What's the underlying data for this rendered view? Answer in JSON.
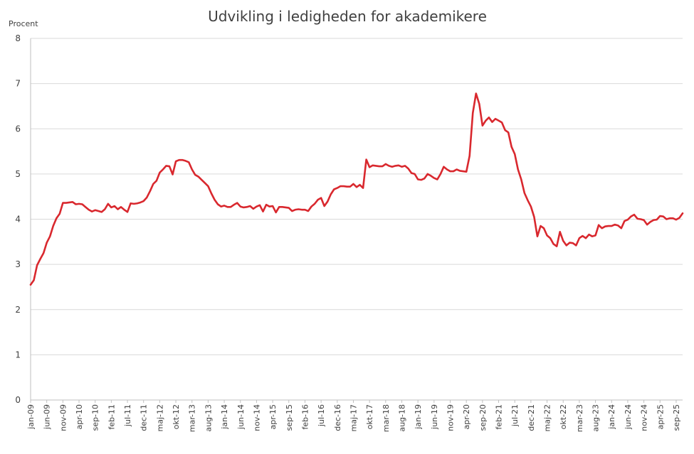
{
  "chart_data": {
    "type": "line",
    "title": "Udvikling i ledigheden for akademikere",
    "ylabel": "Procent",
    "xlabel": "",
    "ylim": [
      0,
      8
    ],
    "yticks": [
      "0",
      "1",
      "2",
      "3",
      "4",
      "5",
      "6",
      "7",
      "8"
    ],
    "grid": "horizontal",
    "legend": "none",
    "line_color": "#d9282e",
    "x_start": "2009-01",
    "x_end": "2025-10",
    "xtick_labels": [
      "jan-09",
      "jun-09",
      "nov-09",
      "apr-10",
      "sep-10",
      "feb-11",
      "jul-11",
      "dec-11",
      "maj-12",
      "okt-12",
      "mar-13",
      "aug-13",
      "jan-14",
      "jun-14",
      "nov-14",
      "apr-15",
      "sep-15",
      "feb-16",
      "jul-16",
      "dec-16",
      "maj-17",
      "okt-17",
      "mar-18",
      "aug-18",
      "jan-19",
      "jun-19",
      "nov-19",
      "apr-20",
      "sep-20",
      "feb-21",
      "jul-21",
      "dec-21",
      "maj-22",
      "okt-22",
      "mar-23",
      "aug-23",
      "jan-24",
      "jun-24",
      "nov-24",
      "apr-25",
      "sep-25"
    ],
    "series": [
      {
        "values": [
          2.55,
          2.65,
          2.98,
          3.12,
          3.25,
          3.48,
          3.62,
          3.85,
          4.02,
          4.12,
          4.36,
          4.36,
          4.37,
          4.38,
          4.33,
          4.34,
          4.33,
          4.27,
          4.21,
          4.17,
          4.2,
          4.18,
          4.16,
          4.22,
          4.34,
          4.26,
          4.29,
          4.22,
          4.27,
          4.21,
          4.16,
          4.35,
          4.34,
          4.35,
          4.37,
          4.4,
          4.48,
          4.62,
          4.78,
          4.85,
          5.03,
          5.1,
          5.18,
          5.17,
          4.99,
          5.28,
          5.31,
          5.31,
          5.29,
          5.26,
          5.1,
          4.98,
          4.94,
          4.87,
          4.8,
          4.73,
          4.57,
          4.43,
          4.33,
          4.28,
          4.3,
          4.27,
          4.27,
          4.32,
          4.36,
          4.28,
          4.26,
          4.27,
          4.29,
          4.23,
          4.28,
          4.31,
          4.17,
          4.32,
          4.28,
          4.29,
          4.15,
          4.27,
          4.27,
          4.26,
          4.25,
          4.18,
          4.21,
          4.22,
          4.21,
          4.21,
          4.18,
          4.28,
          4.34,
          4.43,
          4.47,
          4.29,
          4.39,
          4.55,
          4.66,
          4.69,
          4.73,
          4.73,
          4.72,
          4.72,
          4.78,
          4.71,
          4.76,
          4.69,
          5.32,
          5.15,
          5.19,
          5.18,
          5.17,
          5.17,
          5.22,
          5.18,
          5.16,
          5.18,
          5.19,
          5.16,
          5.18,
          5.12,
          5.02,
          5.0,
          4.88,
          4.87,
          4.9,
          5.0,
          4.96,
          4.91,
          4.88,
          5.0,
          5.16,
          5.1,
          5.06,
          5.06,
          5.1,
          5.07,
          5.06,
          5.05,
          5.4,
          6.35,
          6.78,
          6.55,
          6.07,
          6.18,
          6.25,
          6.15,
          6.22,
          6.18,
          6.14,
          5.97,
          5.92,
          5.6,
          5.44,
          5.1,
          4.88,
          4.58,
          4.42,
          4.28,
          4.05,
          3.62,
          3.85,
          3.8,
          3.64,
          3.58,
          3.45,
          3.4,
          3.72,
          3.52,
          3.42,
          3.48,
          3.47,
          3.42,
          3.58,
          3.63,
          3.58,
          3.66,
          3.62,
          3.64,
          3.87,
          3.8,
          3.84,
          3.85,
          3.85,
          3.88,
          3.86,
          3.8,
          3.96,
          3.99,
          4.06,
          4.1,
          4.01,
          4.0,
          3.98,
          3.88,
          3.94,
          3.98,
          3.99,
          4.07,
          4.06,
          4.0,
          4.02,
          4.02,
          3.99,
          4.03,
          4.13
        ]
      }
    ]
  }
}
